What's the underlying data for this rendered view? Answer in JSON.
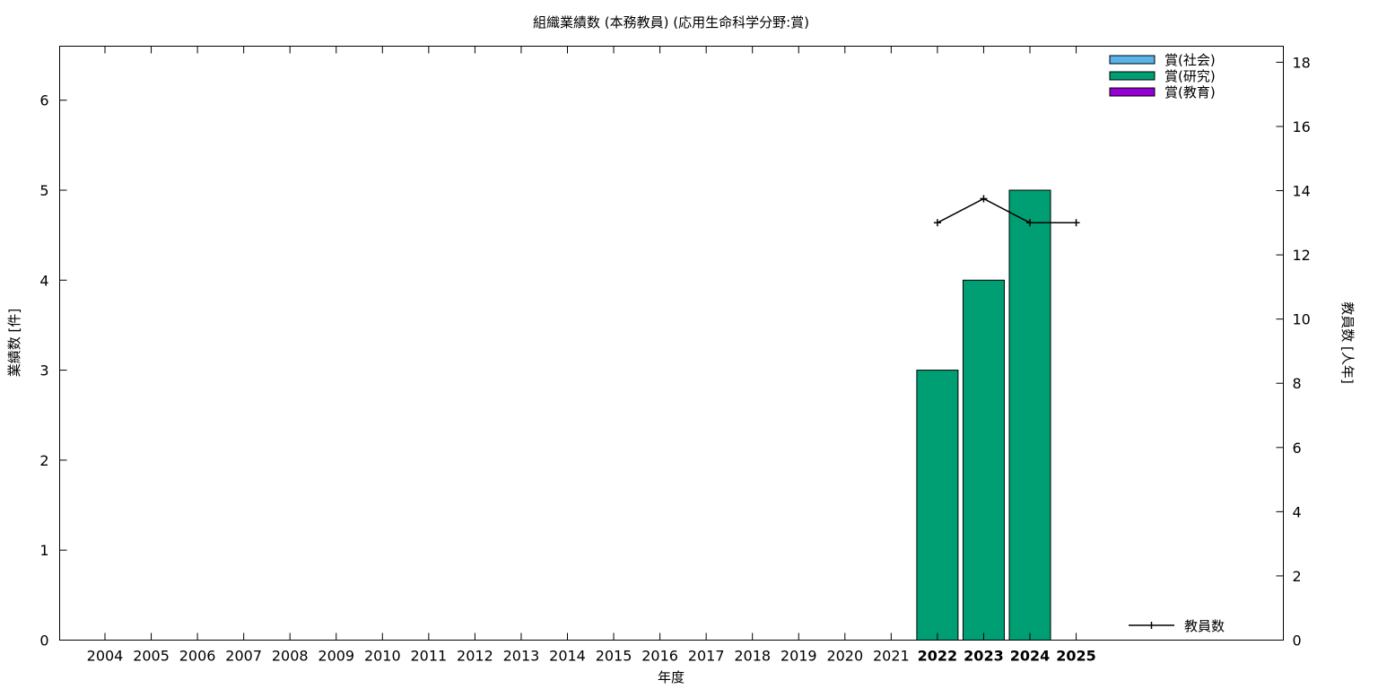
{
  "chart_data": {
    "type": "bar",
    "title": "組織業績数 (本務教員) (応用生命科学分野:賞)",
    "xlabel": "年度",
    "ylabel": "業績数 [件]",
    "y2label": "教員数 [人年]",
    "categories": [
      "2004",
      "2005",
      "2006",
      "2007",
      "2008",
      "2009",
      "2010",
      "2011",
      "2012",
      "2013",
      "2014",
      "2015",
      "2016",
      "2017",
      "2018",
      "2019",
      "2020",
      "2021",
      "2022",
      "2023",
      "2024",
      "2025"
    ],
    "bold_categories": [
      "2022",
      "2023",
      "2024",
      "2025"
    ],
    "ylim": [
      0,
      6.6
    ],
    "y_ticks": [
      0,
      1,
      2,
      3,
      4,
      5,
      6
    ],
    "y2lim": [
      0,
      18.5
    ],
    "y2_ticks": [
      0,
      2,
      4,
      6,
      8,
      10,
      12,
      14,
      16,
      18
    ],
    "legend_position": "top-right",
    "grid": false,
    "series": [
      {
        "name": "賞(社会)",
        "color": "#56b4e9",
        "values": [
          0,
          0,
          0,
          0,
          0,
          0,
          0,
          0,
          0,
          0,
          0,
          0,
          0,
          0,
          0,
          0,
          0,
          0,
          0,
          0,
          0,
          0
        ]
      },
      {
        "name": "賞(研究)",
        "color": "#009e73",
        "values": [
          0,
          0,
          0,
          0,
          0,
          0,
          0,
          0,
          0,
          0,
          0,
          0,
          0,
          0,
          0,
          0,
          0,
          0,
          3,
          4,
          5,
          0
        ]
      },
      {
        "name": "賞(教育)",
        "color": "#9400d3",
        "values": [
          0,
          0,
          0,
          0,
          0,
          0,
          0,
          0,
          0,
          0,
          0,
          0,
          0,
          0,
          0,
          0,
          0,
          0,
          0,
          0,
          0,
          0
        ]
      }
    ],
    "line_series": {
      "name": "教員数",
      "axis": "right",
      "color": "#000000",
      "x": [
        "2022",
        "2023",
        "2024",
        "2025"
      ],
      "values": [
        13,
        13.75,
        13,
        13
      ]
    }
  }
}
